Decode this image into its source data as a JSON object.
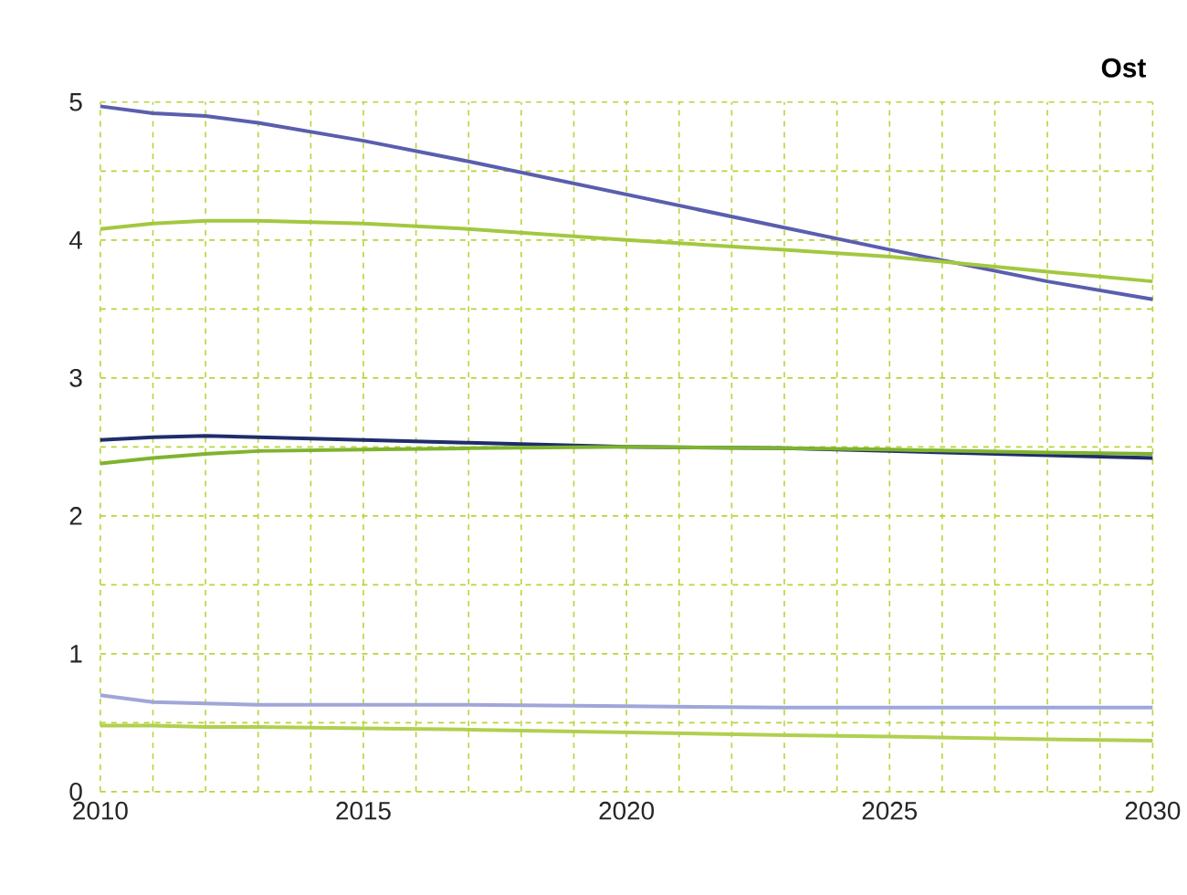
{
  "chart_data": {
    "type": "line",
    "title": "Ost",
    "x": [
      2010,
      2011,
      2012,
      2013,
      2015,
      2017,
      2020,
      2023,
      2025,
      2028,
      2030
    ],
    "series": [
      {
        "color": "#5a5eae",
        "values": [
          4.97,
          4.92,
          4.9,
          4.85,
          4.72,
          4.57,
          4.33,
          4.09,
          3.93,
          3.7,
          3.57
        ]
      },
      {
        "color": "#a3c840",
        "values": [
          4.08,
          4.12,
          4.14,
          4.14,
          4.12,
          4.08,
          4.0,
          3.93,
          3.88,
          3.77,
          3.7
        ]
      },
      {
        "color": "#1f2d6b",
        "values": [
          2.55,
          2.57,
          2.58,
          2.57,
          2.55,
          2.53,
          2.5,
          2.49,
          2.47,
          2.44,
          2.42
        ]
      },
      {
        "color": "#7fb32e",
        "values": [
          2.38,
          2.42,
          2.45,
          2.47,
          2.48,
          2.49,
          2.5,
          2.49,
          2.48,
          2.46,
          2.45
        ]
      },
      {
        "color": "#a0a6d8",
        "values": [
          0.7,
          0.65,
          0.64,
          0.63,
          0.63,
          0.63,
          0.62,
          0.61,
          0.61,
          0.61,
          0.61
        ]
      },
      {
        "color": "#b0d050",
        "values": [
          0.48,
          0.48,
          0.47,
          0.47,
          0.46,
          0.45,
          0.43,
          0.41,
          0.4,
          0.38,
          0.37
        ]
      }
    ],
    "xlim": [
      2010,
      2030
    ],
    "ylim": [
      0,
      5
    ],
    "xticks": [
      2010,
      {
        "value": 2011,
        "label": null
      },
      {
        "value": 2012,
        "label": null
      },
      {
        "value": 2013,
        "label": null
      },
      {
        "value": 2014,
        "label": null
      },
      2015,
      {
        "value": 2016,
        "label": null
      },
      {
        "value": 2017,
        "label": null
      },
      {
        "value": 2018,
        "label": null
      },
      {
        "value": 2019,
        "label": null
      },
      2020,
      {
        "value": 2021,
        "label": null
      },
      {
        "value": 2022,
        "label": null
      },
      {
        "value": 2023,
        "label": null
      },
      {
        "value": 2024,
        "label": null
      },
      2025,
      {
        "value": 2026,
        "label": null
      },
      {
        "value": 2027,
        "label": null
      },
      {
        "value": 2028,
        "label": null
      },
      {
        "value": 2029,
        "label": null
      },
      2030
    ],
    "yticks": [
      0,
      {
        "value": 0.5,
        "label": null
      },
      1,
      {
        "value": 1.5,
        "label": null
      },
      2,
      {
        "value": 2.5,
        "label": null
      },
      3,
      {
        "value": 3.5,
        "label": null
      },
      4,
      {
        "value": 4.5,
        "label": null
      },
      5
    ],
    "grid": true
  }
}
